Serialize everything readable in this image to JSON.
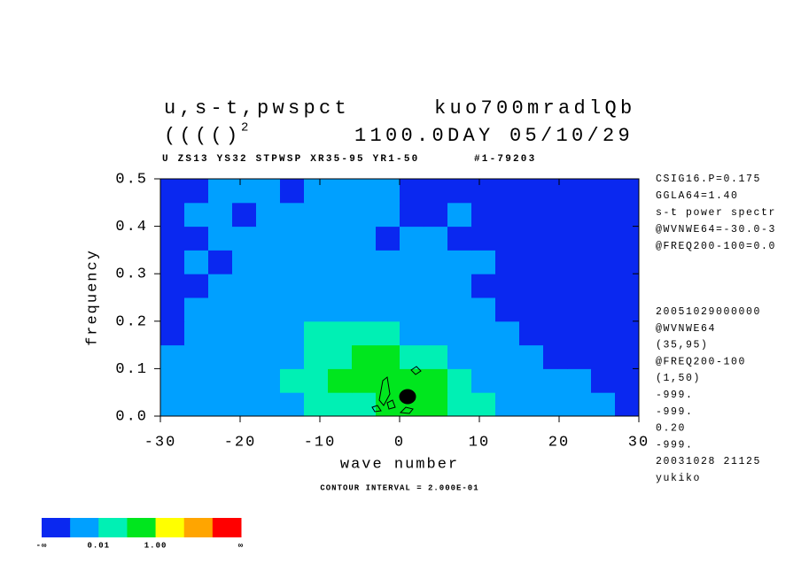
{
  "chart_data": {
    "type": "contour",
    "title": "u,s-t,pwspct",
    "title_right": "kuo700mradlQb",
    "title2": "(((()",
    "title2_sup": "2",
    "title2_right": "1100.0DAY 05/10/29",
    "subtitle": "U ZS13 YS32 STPWSP XR35-95 YR1-50",
    "subtitle_right": "#1-79203",
    "xlabel": "wave number",
    "ylabel": "frequency",
    "xlim": [
      -30,
      30
    ],
    "ylim": [
      0,
      0.5
    ],
    "xticks": [
      -30,
      -20,
      -10,
      0,
      10,
      20,
      30
    ],
    "yticks": [
      {
        "value": 0,
        "label": "0.0"
      },
      0.1,
      0.2,
      0.3,
      0.4,
      0.5
    ],
    "field": [
      [
        1,
        1,
        1,
        1,
        1,
        1,
        2,
        2,
        2,
        3,
        3,
        3,
        2,
        2,
        1,
        1,
        1,
        1,
        1,
        0
      ],
      [
        1,
        1,
        1,
        1,
        1,
        2,
        2,
        3,
        3,
        3,
        3,
        3,
        2,
        1,
        1,
        1,
        1,
        1,
        0,
        0
      ],
      [
        1,
        1,
        1,
        1,
        1,
        1,
        2,
        2,
        3,
        3,
        2,
        2,
        1,
        1,
        1,
        1,
        0,
        0,
        0,
        0
      ],
      [
        0,
        1,
        1,
        1,
        1,
        1,
        2,
        2,
        2,
        2,
        1,
        1,
        1,
        1,
        1,
        0,
        0,
        0,
        0,
        0
      ],
      [
        0,
        1,
        1,
        1,
        1,
        1,
        1,
        1,
        1,
        1,
        1,
        1,
        1,
        1,
        0,
        0,
        0,
        0,
        0,
        0
      ],
      [
        0,
        0,
        1,
        1,
        1,
        1,
        1,
        1,
        1,
        1,
        1,
        1,
        1,
        0,
        0,
        0,
        0,
        0,
        0,
        0
      ],
      [
        0,
        1,
        0,
        1,
        1,
        1,
        1,
        1,
        1,
        1,
        1,
        1,
        1,
        1,
        0,
        0,
        0,
        0,
        0,
        0
      ],
      [
        0,
        0,
        1,
        1,
        1,
        1,
        1,
        1,
        1,
        0,
        1,
        1,
        0,
        0,
        0,
        0,
        0,
        0,
        0,
        0
      ],
      [
        0,
        1,
        1,
        0,
        1,
        1,
        1,
        1,
        1,
        1,
        0,
        0,
        1,
        0,
        0,
        0,
        0,
        0,
        0,
        0
      ],
      [
        0,
        0,
        1,
        1,
        1,
        0,
        1,
        1,
        1,
        1,
        0,
        0,
        0,
        0,
        0,
        0,
        0,
        0,
        0,
        0
      ]
    ],
    "colorbar": {
      "colors": [
        "#0a28f0",
        "#00a0ff",
        "#00f0b4",
        "#00e61e",
        "#ffff00",
        "#ffa500",
        "#ff0000"
      ],
      "labels": [
        "-∞",
        null,
        "0.01",
        null,
        "1.00",
        null,
        null,
        "∞"
      ]
    },
    "contour_interval": "CONTOUR INTERVAL = 2.000E-01",
    "notes_top": [
      "CSIG16.P=0.175",
      "GGLA64=1.40",
      "s-t power spectr",
      "@WVNWE64=-30.0-3",
      "@FREQ200-100=0.0"
    ],
    "notes_bottom": [
      "20051029000000",
      "@WVNWE64",
      "(35,95)",
      "@FREQ200-100",
      "(1,50)",
      "-999.",
      "-999.",
      "0.20",
      "-999.",
      "20031028  21125",
      "yukiko"
    ]
  }
}
